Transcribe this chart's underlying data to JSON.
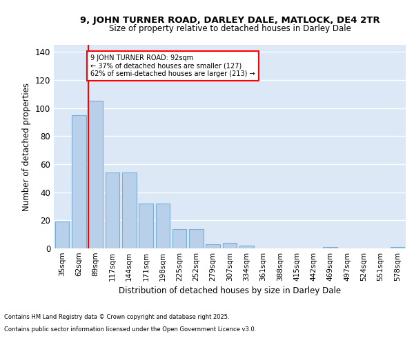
{
  "title1": "9, JOHN TURNER ROAD, DARLEY DALE, MATLOCK, DE4 2TR",
  "title2": "Size of property relative to detached houses in Darley Dale",
  "xlabel": "Distribution of detached houses by size in Darley Dale",
  "ylabel": "Number of detached properties",
  "categories": [
    "35sqm",
    "62sqm",
    "89sqm",
    "117sqm",
    "144sqm",
    "171sqm",
    "198sqm",
    "225sqm",
    "252sqm",
    "279sqm",
    "307sqm",
    "334sqm",
    "361sqm",
    "388sqm",
    "415sqm",
    "442sqm",
    "469sqm",
    "497sqm",
    "524sqm",
    "551sqm",
    "578sqm"
  ],
  "values": [
    19,
    95,
    105,
    54,
    54,
    32,
    32,
    14,
    14,
    3,
    4,
    2,
    0,
    0,
    0,
    0,
    1,
    0,
    0,
    0,
    1
  ],
  "bar_color": "#b8d0ea",
  "bar_edge_color": "#7aadd4",
  "vline_index": 2,
  "vline_color": "red",
  "annotation_line1": "9 JOHN TURNER ROAD: 92sqm",
  "annotation_line2": "← 37% of detached houses are smaller (127)",
  "annotation_line3": "62% of semi-detached houses are larger (213) →",
  "annotation_box_color": "white",
  "annotation_box_edge": "red",
  "ylim": [
    0,
    145
  ],
  "yticks": [
    0,
    20,
    40,
    60,
    80,
    100,
    120,
    140
  ],
  "bg_color": "#dce8f5",
  "footer1": "Contains HM Land Registry data © Crown copyright and database right 2025.",
  "footer2": "Contains public sector information licensed under the Open Government Licence v3.0."
}
